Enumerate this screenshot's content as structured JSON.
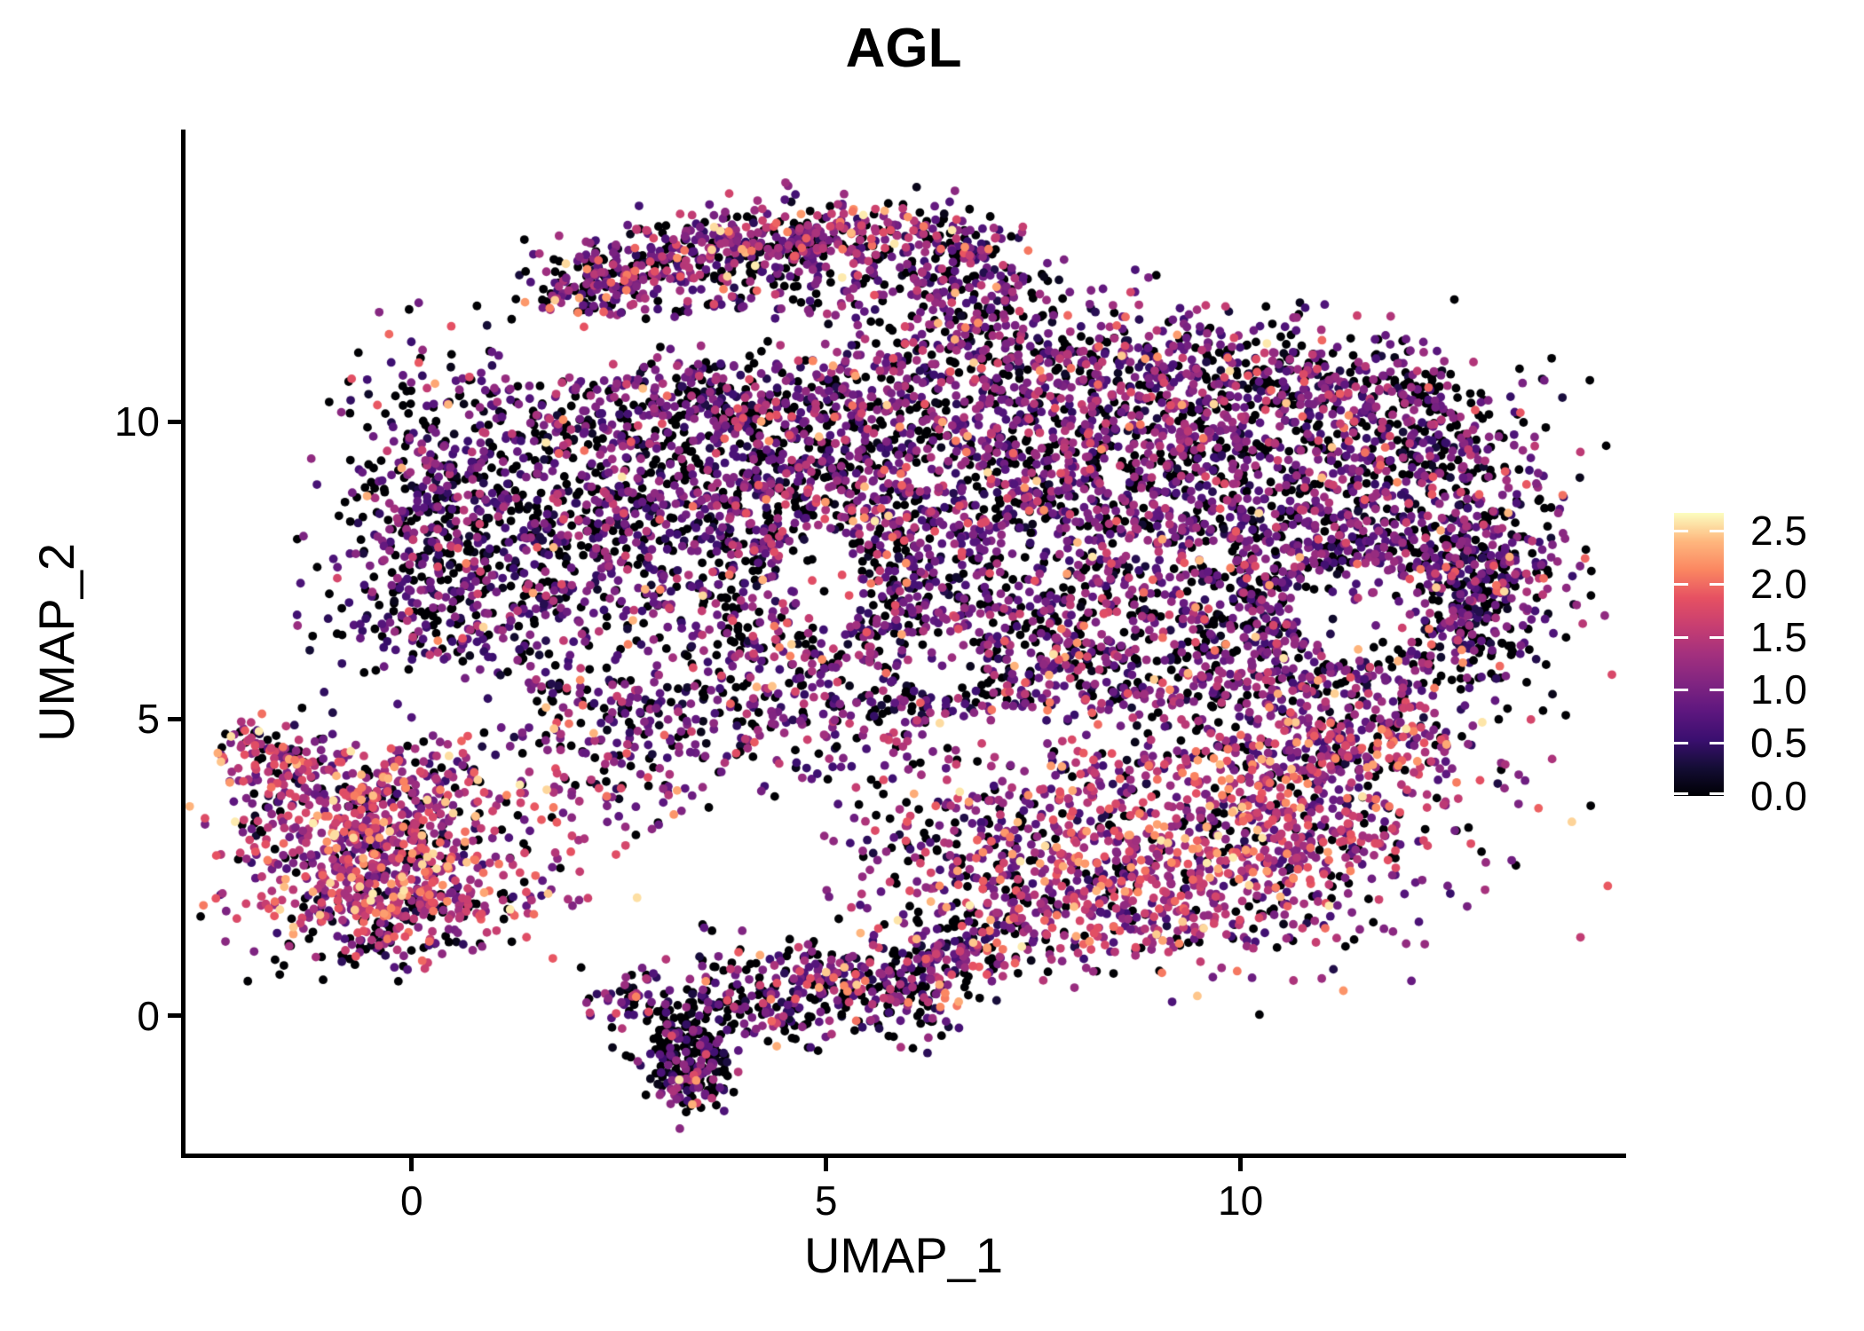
{
  "chart_data": {
    "type": "scatter",
    "title": "AGL",
    "xlabel": "UMAP_1",
    "ylabel": "UMAP_2",
    "xlim": [
      -2.76,
      14.63
    ],
    "ylim": [
      -2.35,
      14.92
    ],
    "grid": false,
    "point_radius_px": 4.9,
    "background": "#ffffff",
    "axis_color": "#000000",
    "x_ticks": [
      {
        "v": 0,
        "label": "0"
      },
      {
        "v": 5,
        "label": "5"
      },
      {
        "v": 10,
        "label": "10"
      }
    ],
    "y_ticks": [
      {
        "v": 10,
        "label": "10"
      },
      {
        "v": 5,
        "label": "5"
      },
      {
        "v": 0,
        "label": "0"
      }
    ],
    "legend": {
      "position": "right",
      "value_range": [
        0,
        2.667
      ],
      "ticks": [
        {
          "v": 2.5,
          "label": "2.5"
        },
        {
          "v": 2.0,
          "label": "2.0"
        },
        {
          "v": 1.5,
          "label": "1.5"
        },
        {
          "v": 1.0,
          "label": "1.0"
        },
        {
          "v": 0.5,
          "label": "0.5"
        },
        {
          "v": 0.0,
          "label": "0.0"
        }
      ],
      "colormap": "magma",
      "stops": [
        [
          0.0,
          "#000004"
        ],
        [
          0.1,
          "#140D35"
        ],
        [
          0.2,
          "#3B0F70"
        ],
        [
          0.3,
          "#5E177F"
        ],
        [
          0.4,
          "#812581"
        ],
        [
          0.5,
          "#A3307E"
        ],
        [
          0.6,
          "#C73E71"
        ],
        [
          0.7,
          "#E65162"
        ],
        [
          0.8,
          "#FB8761"
        ],
        [
          0.9,
          "#FEB77E"
        ],
        [
          1.0,
          "#FCFDBF"
        ]
      ]
    },
    "seed": 42,
    "expression_profiles": {
      "main": {
        "p0": 0.32,
        "mu": 0.95,
        "sd": 0.45,
        "hi": 0.03
      },
      "dark": {
        "p0": 0.44,
        "mu": 0.8,
        "sd": 0.4,
        "hi": 0.02
      },
      "warm": {
        "p0": 0.16,
        "mu": 1.28,
        "sd": 0.48,
        "hi": 0.09
      },
      "arm": {
        "p0": 0.3,
        "mu": 1.02,
        "sd": 0.45,
        "hi": 0.04
      },
      "snake": {
        "p0": 0.32,
        "mu": 0.98,
        "sd": 0.5,
        "hi": 0.05
      },
      "snakedark": {
        "p0": 0.5,
        "mu": 0.8,
        "sd": 0.45,
        "hi": 0.02
      }
    },
    "clusters": [
      [
        0.9,
        8.0,
        1.0,
        1.6,
        0,
        550,
        "dark"
      ],
      [
        0.2,
        8.0,
        0.45,
        1.4,
        0,
        250,
        "dark"
      ],
      [
        2.8,
        8.8,
        1.3,
        1.5,
        0,
        650,
        "main"
      ],
      [
        5.0,
        9.5,
        1.5,
        1.2,
        0,
        750,
        "main"
      ],
      [
        5.5,
        7.2,
        1.5,
        1.3,
        0,
        650,
        "main"
      ],
      [
        8.0,
        9.2,
        1.8,
        1.2,
        0,
        850,
        "main"
      ],
      [
        10.5,
        8.9,
        1.5,
        1.1,
        0,
        650,
        "main"
      ],
      [
        12.3,
        7.8,
        0.9,
        1.3,
        0,
        450,
        "main"
      ],
      [
        12.95,
        7.2,
        0.25,
        0.95,
        0,
        150,
        "dark"
      ],
      [
        9.5,
        6.4,
        1.5,
        1.1,
        0,
        550,
        "main"
      ],
      [
        6.5,
        5.8,
        1.8,
        0.8,
        0,
        380,
        "main"
      ],
      [
        4.0,
        10.4,
        1.8,
        0.55,
        0,
        240,
        "main"
      ],
      [
        7.5,
        10.9,
        1.5,
        0.55,
        0,
        240,
        "main"
      ],
      [
        9.8,
        10.7,
        1.2,
        0.55,
        0,
        200,
        "main"
      ],
      [
        11.4,
        10.3,
        0.9,
        0.6,
        0,
        160,
        "main"
      ],
      [
        12.3,
        9.9,
        0.5,
        0.5,
        0,
        70,
        "main"
      ],
      [
        9.0,
        5.3,
        1.5,
        0.45,
        0,
        190,
        "main"
      ],
      [
        11.2,
        4.7,
        0.75,
        0.55,
        0,
        190,
        "warm"
      ],
      [
        11.4,
        6.8,
        0.55,
        0.55,
        0,
        60,
        "main"
      ],
      [
        2.3,
        12.3,
        0.5,
        0.33,
        30,
        170,
        "arm"
      ],
      [
        3.6,
        12.95,
        0.8,
        0.3,
        12,
        210,
        "arm"
      ],
      [
        5.1,
        13.15,
        0.8,
        0.28,
        0,
        210,
        "arm"
      ],
      [
        6.3,
        12.85,
        0.5,
        0.4,
        -30,
        140,
        "arm"
      ],
      [
        4.4,
        12.25,
        1.2,
        0.45,
        8,
        120,
        "arm"
      ],
      [
        6.9,
        12.2,
        0.45,
        0.5,
        -45,
        100,
        "arm"
      ],
      [
        7.6,
        11.5,
        0.7,
        0.5,
        -30,
        70,
        "main"
      ],
      [
        9.3,
        3.0,
        1.6,
        1.0,
        0,
        800,
        "warm"
      ],
      [
        10.8,
        3.6,
        0.8,
        0.85,
        0,
        280,
        "warm"
      ],
      [
        8.3,
        1.9,
        1.2,
        0.55,
        -10,
        280,
        "warm"
      ],
      [
        6.9,
        3.1,
        0.8,
        1.0,
        0,
        170,
        "main"
      ],
      [
        7.1,
        1.3,
        0.4,
        0.35,
        0,
        50,
        "snake"
      ],
      [
        -0.4,
        2.7,
        0.85,
        0.75,
        0,
        650,
        "warm"
      ],
      [
        -0.35,
        3.9,
        0.7,
        0.35,
        0,
        150,
        "warm"
      ],
      [
        -1.55,
        4.2,
        0.3,
        0.3,
        0,
        60,
        "warm"
      ],
      [
        -1.95,
        4.55,
        0.18,
        0.25,
        0,
        45,
        "warm"
      ],
      [
        -0.2,
        1.75,
        0.8,
        0.3,
        0,
        140,
        "warm"
      ],
      [
        -0.3,
        1.15,
        0.6,
        0.22,
        0,
        40,
        "snake"
      ],
      [
        1.8,
        3.4,
        0.45,
        1.0,
        0,
        75,
        "warm"
      ],
      [
        2.7,
        4.0,
        0.5,
        0.6,
        0,
        50,
        "main"
      ],
      [
        2.6,
        0.35,
        0.27,
        0.22,
        0,
        50,
        "snake"
      ],
      [
        3.3,
        -0.5,
        0.3,
        0.45,
        0,
        200,
        "snakedark"
      ],
      [
        3.45,
        -1.15,
        0.22,
        0.25,
        0,
        55,
        "snakedark"
      ],
      [
        4.3,
        0.3,
        0.5,
        0.5,
        20,
        170,
        "snake"
      ],
      [
        5.2,
        0.5,
        0.5,
        0.3,
        0,
        110,
        "snake"
      ],
      [
        6.0,
        0.5,
        0.4,
        0.45,
        0,
        140,
        "snake"
      ],
      [
        6.55,
        1.0,
        0.27,
        0.22,
        0,
        45,
        "snake"
      ],
      [
        5.0,
        4.7,
        1.6,
        0.5,
        0,
        120,
        "main"
      ],
      [
        3.3,
        5.2,
        0.9,
        0.5,
        0,
        90,
        "main"
      ],
      [
        1.7,
        5.6,
        0.6,
        0.5,
        0,
        60,
        "main"
      ]
    ],
    "rings": [
      [
        11.4,
        6.8,
        1.35,
        0.22,
        0.85,
        210,
        "dark"
      ]
    ],
    "voids": [
      [
        4.9,
        7.3,
        0.5,
        0.95,
        0.12
      ],
      [
        6.4,
        5.9,
        0.5,
        0.55,
        0.18
      ],
      [
        11.4,
        6.8,
        0.8,
        0.8,
        0.22
      ],
      [
        8.5,
        4.85,
        2.0,
        0.4,
        0.3
      ],
      [
        4.0,
        11.45,
        1.4,
        0.45,
        0.22
      ],
      [
        2.2,
        6.1,
        0.7,
        0.5,
        0.45
      ],
      [
        6.8,
        4.3,
        0.9,
        0.6,
        0.25
      ],
      [
        0.3,
        5.3,
        1.2,
        0.55,
        0.15
      ],
      [
        2.0,
        11.3,
        1.0,
        0.55,
        0.15
      ]
    ]
  }
}
